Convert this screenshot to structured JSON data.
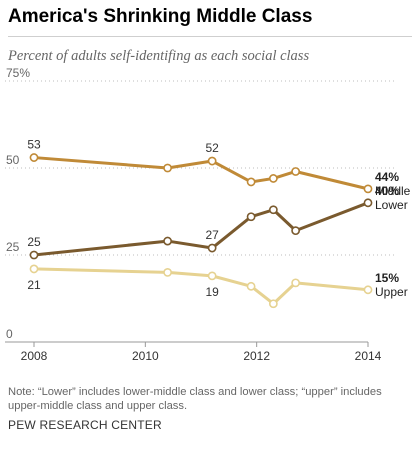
{
  "chart_data": {
    "type": "line",
    "title": "America's Shrinking Middle Class",
    "subtitle": "Percent of adults self-identifing as each social class",
    "ylim": [
      0,
      75
    ],
    "y_ticks": [
      "0",
      "25",
      "50",
      "75%"
    ],
    "xlim": [
      2008,
      2014
    ],
    "x_ticks": [
      "2008",
      "2010",
      "2012",
      "2014"
    ],
    "grid": "horizontal dotted",
    "series": [
      {
        "name": "Middle",
        "color": "#c08a37",
        "end_label": "44%",
        "x": [
          2008.0,
          2010.4,
          2011.2,
          2011.9,
          2012.3,
          2012.7,
          2014.0
        ],
        "values": [
          53,
          50,
          52,
          46,
          47,
          49,
          44
        ]
      },
      {
        "name": "Lower",
        "color": "#7a5a2e",
        "end_label": "40%",
        "x": [
          2008.0,
          2010.4,
          2011.2,
          2011.9,
          2012.3,
          2012.7,
          2014.0
        ],
        "values": [
          25,
          29,
          27,
          36,
          38,
          32,
          40
        ]
      },
      {
        "name": "Upper",
        "color": "#e6d291",
        "end_label": "15%",
        "x": [
          2008.0,
          2010.4,
          2011.2,
          2011.9,
          2012.3,
          2012.7,
          2014.0
        ],
        "values": [
          21,
          20,
          19,
          16,
          11,
          17,
          15
        ]
      }
    ],
    "data_labels": [
      {
        "series": "Middle",
        "point": 0,
        "text": "53"
      },
      {
        "series": "Middle",
        "point": 2,
        "text": "52"
      },
      {
        "series": "Lower",
        "point": 0,
        "text": "25"
      },
      {
        "series": "Lower",
        "point": 2,
        "text": "27"
      },
      {
        "series": "Upper",
        "point": 0,
        "text": "21"
      },
      {
        "series": "Upper",
        "point": 2,
        "text": "19"
      }
    ]
  },
  "note": "Note: “Lower” includes lower-middle class and lower class; “upper” includes upper-middle class and upper class.",
  "source": "PEW RESEARCH CENTER"
}
